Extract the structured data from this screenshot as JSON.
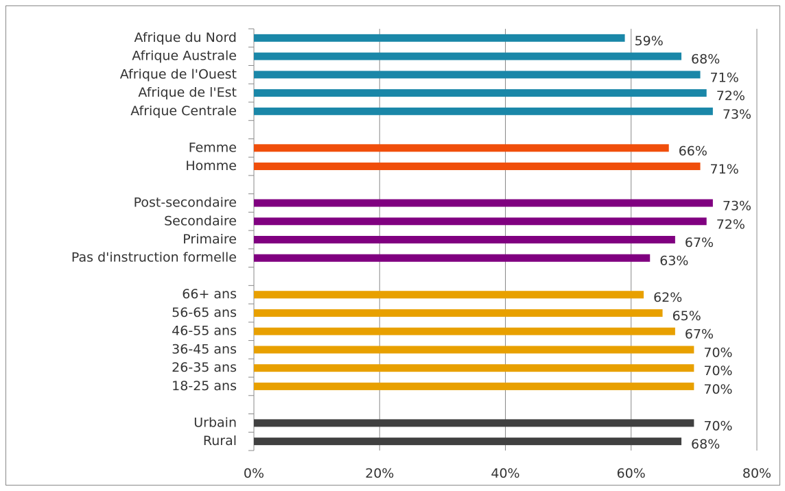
{
  "chart_data": {
    "type": "bar",
    "groups": [
      {
        "color": "#1a87a8",
        "categories": [
          "Afrique du Nord",
          "Afrique Australe",
          "Afrique de l'Ouest",
          "Afrique de l'Est",
          "Afrique Centrale"
        ],
        "values": [
          59,
          68,
          71,
          72,
          73
        ],
        "value_labels": [
          "59%",
          "68%",
          "71%",
          "72%",
          "73%"
        ]
      },
      {
        "color": "#f04e0b",
        "categories": [
          "Femme",
          "Homme"
        ],
        "values": [
          66,
          71
        ],
        "value_labels": [
          "66%",
          "71%"
        ]
      },
      {
        "color": "#800080",
        "categories": [
          "Post-secondaire",
          "Secondaire",
          "Primaire",
          "Pas d'instruction formelle"
        ],
        "values": [
          73,
          72,
          67,
          63
        ],
        "value_labels": [
          "73%",
          "72%",
          "67%",
          "63%"
        ]
      },
      {
        "color": "#e8a000",
        "categories": [
          "66+ ans",
          "56-65 ans",
          "46-55 ans",
          "36-45 ans",
          "26-35 ans",
          "18-25 ans"
        ],
        "values": [
          62,
          65,
          67,
          70,
          70,
          70
        ],
        "value_labels": [
          "62%",
          "65%",
          "67%",
          "70%",
          "70%",
          "70%"
        ]
      },
      {
        "color": "#404040",
        "categories": [
          "Urbain",
          "Rural"
        ],
        "values": [
          70,
          68
        ],
        "value_labels": [
          "70%",
          "68%"
        ]
      }
    ],
    "xlim": [
      0,
      80
    ],
    "xticks": [
      {
        "value": 0,
        "label": "0%"
      },
      {
        "value": 20,
        "label": "20%"
      },
      {
        "value": 40,
        "label": "40%"
      },
      {
        "value": 60,
        "label": "60%"
      },
      {
        "value": 80,
        "label": "80%"
      }
    ],
    "grid": true
  }
}
